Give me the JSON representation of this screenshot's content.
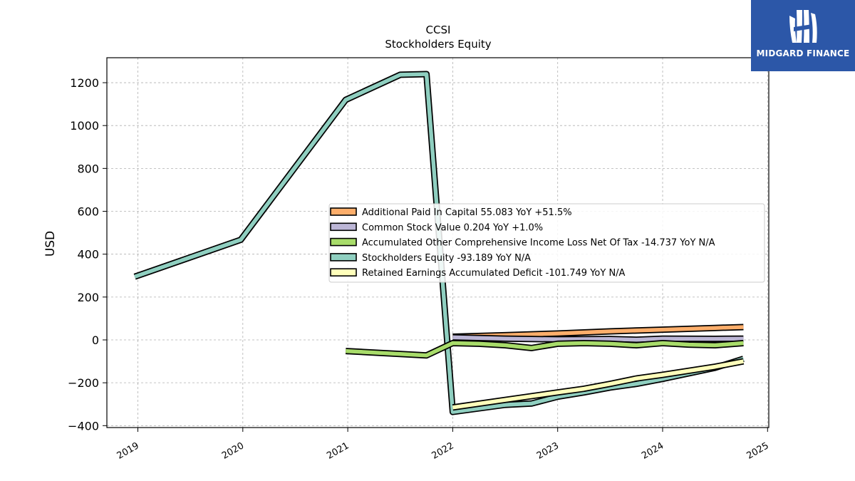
{
  "chart_data": {
    "type": "line",
    "title": "CCSI",
    "subtitle": "Stockholders  Equity",
    "ylabel": "USD",
    "xlabel": "",
    "xlim": [
      2018.85,
      2025.0
    ],
    "ylim": [
      -410,
      1315
    ],
    "yticks": [
      -400,
      -200,
      0,
      200,
      400,
      600,
      800,
      1000,
      1200
    ],
    "xticks": [
      "2019",
      "2020",
      "2021",
      "2022",
      "2023",
      "2024",
      "2025"
    ],
    "grid": true,
    "legend_position": "center-right",
    "series": [
      {
        "name": "Additional Paid In Capital",
        "legend": "Additional Paid In Capital  55.083 YoY +51.5%",
        "color": "#fdae6b",
        "points": [
          [
            2022.0,
            15
          ],
          [
            2022.5,
            22
          ],
          [
            2023.0,
            30
          ],
          [
            2023.5,
            40
          ],
          [
            2024.0,
            48
          ],
          [
            2024.5,
            56
          ],
          [
            2024.77,
            60
          ]
        ]
      },
      {
        "name": "Common Stock Value",
        "legend": "Common Stock Value  0.204 YoY +1.0%",
        "color": "#bcb6d6",
        "points": [
          [
            2022.0,
            12
          ],
          [
            2022.5,
            6
          ],
          [
            2022.75,
            4
          ],
          [
            2023.0,
            3
          ],
          [
            2023.5,
            4
          ],
          [
            2023.75,
            1
          ],
          [
            2024.0,
            6
          ],
          [
            2024.5,
            5
          ],
          [
            2024.77,
            6
          ]
        ]
      },
      {
        "name": "Accumulated Other Comprehensive Income Loss Net Of Tax",
        "legend": "Accumulated Other Comprehensive Income Loss Net Of Tax  -14.737 YoY N/A",
        "color": "#a8dc6a",
        "points": [
          [
            2020.98,
            -52
          ],
          [
            2021.75,
            -72
          ],
          [
            2022.0,
            -15
          ],
          [
            2022.25,
            -18
          ],
          [
            2022.5,
            -25
          ],
          [
            2022.75,
            -38
          ],
          [
            2023.0,
            -18
          ],
          [
            2023.25,
            -15
          ],
          [
            2023.5,
            -18
          ],
          [
            2023.75,
            -25
          ],
          [
            2024.0,
            -15
          ],
          [
            2024.25,
            -22
          ],
          [
            2024.5,
            -25
          ],
          [
            2024.77,
            -15
          ]
        ]
      },
      {
        "name": "Stockholders Equity",
        "legend": "Stockholders Equity  -93.189 YoY N/A",
        "color": "#8fcfc0",
        "points": [
          [
            2018.97,
            295
          ],
          [
            2019.98,
            467
          ],
          [
            2020.98,
            1120
          ],
          [
            2021.5,
            1237
          ],
          [
            2021.75,
            1240
          ],
          [
            2022.0,
            -336
          ],
          [
            2022.5,
            -303
          ],
          [
            2022.75,
            -297
          ],
          [
            2023.0,
            -265
          ],
          [
            2023.25,
            -245
          ],
          [
            2023.5,
            -222
          ],
          [
            2023.75,
            -205
          ],
          [
            2024.0,
            -182
          ],
          [
            2024.5,
            -130
          ],
          [
            2024.77,
            -88
          ]
        ]
      },
      {
        "name": "Retained Earnings Accumulated Deficit",
        "legend": "Retained Earnings Accumulated Deficit  -101.749 YoY N/A",
        "color": "#ffffbb",
        "points": [
          [
            2022.0,
            -315
          ],
          [
            2022.5,
            -280
          ],
          [
            2023.0,
            -245
          ],
          [
            2023.25,
            -228
          ],
          [
            2023.5,
            -205
          ],
          [
            2023.75,
            -180
          ],
          [
            2024.0,
            -163
          ],
          [
            2024.5,
            -125
          ],
          [
            2024.77,
            -100
          ]
        ]
      }
    ]
  },
  "brand": {
    "name": "MIDGARD FINANCE",
    "logo_icon": "midgard-logo-icon",
    "color": "#2c57a8"
  }
}
